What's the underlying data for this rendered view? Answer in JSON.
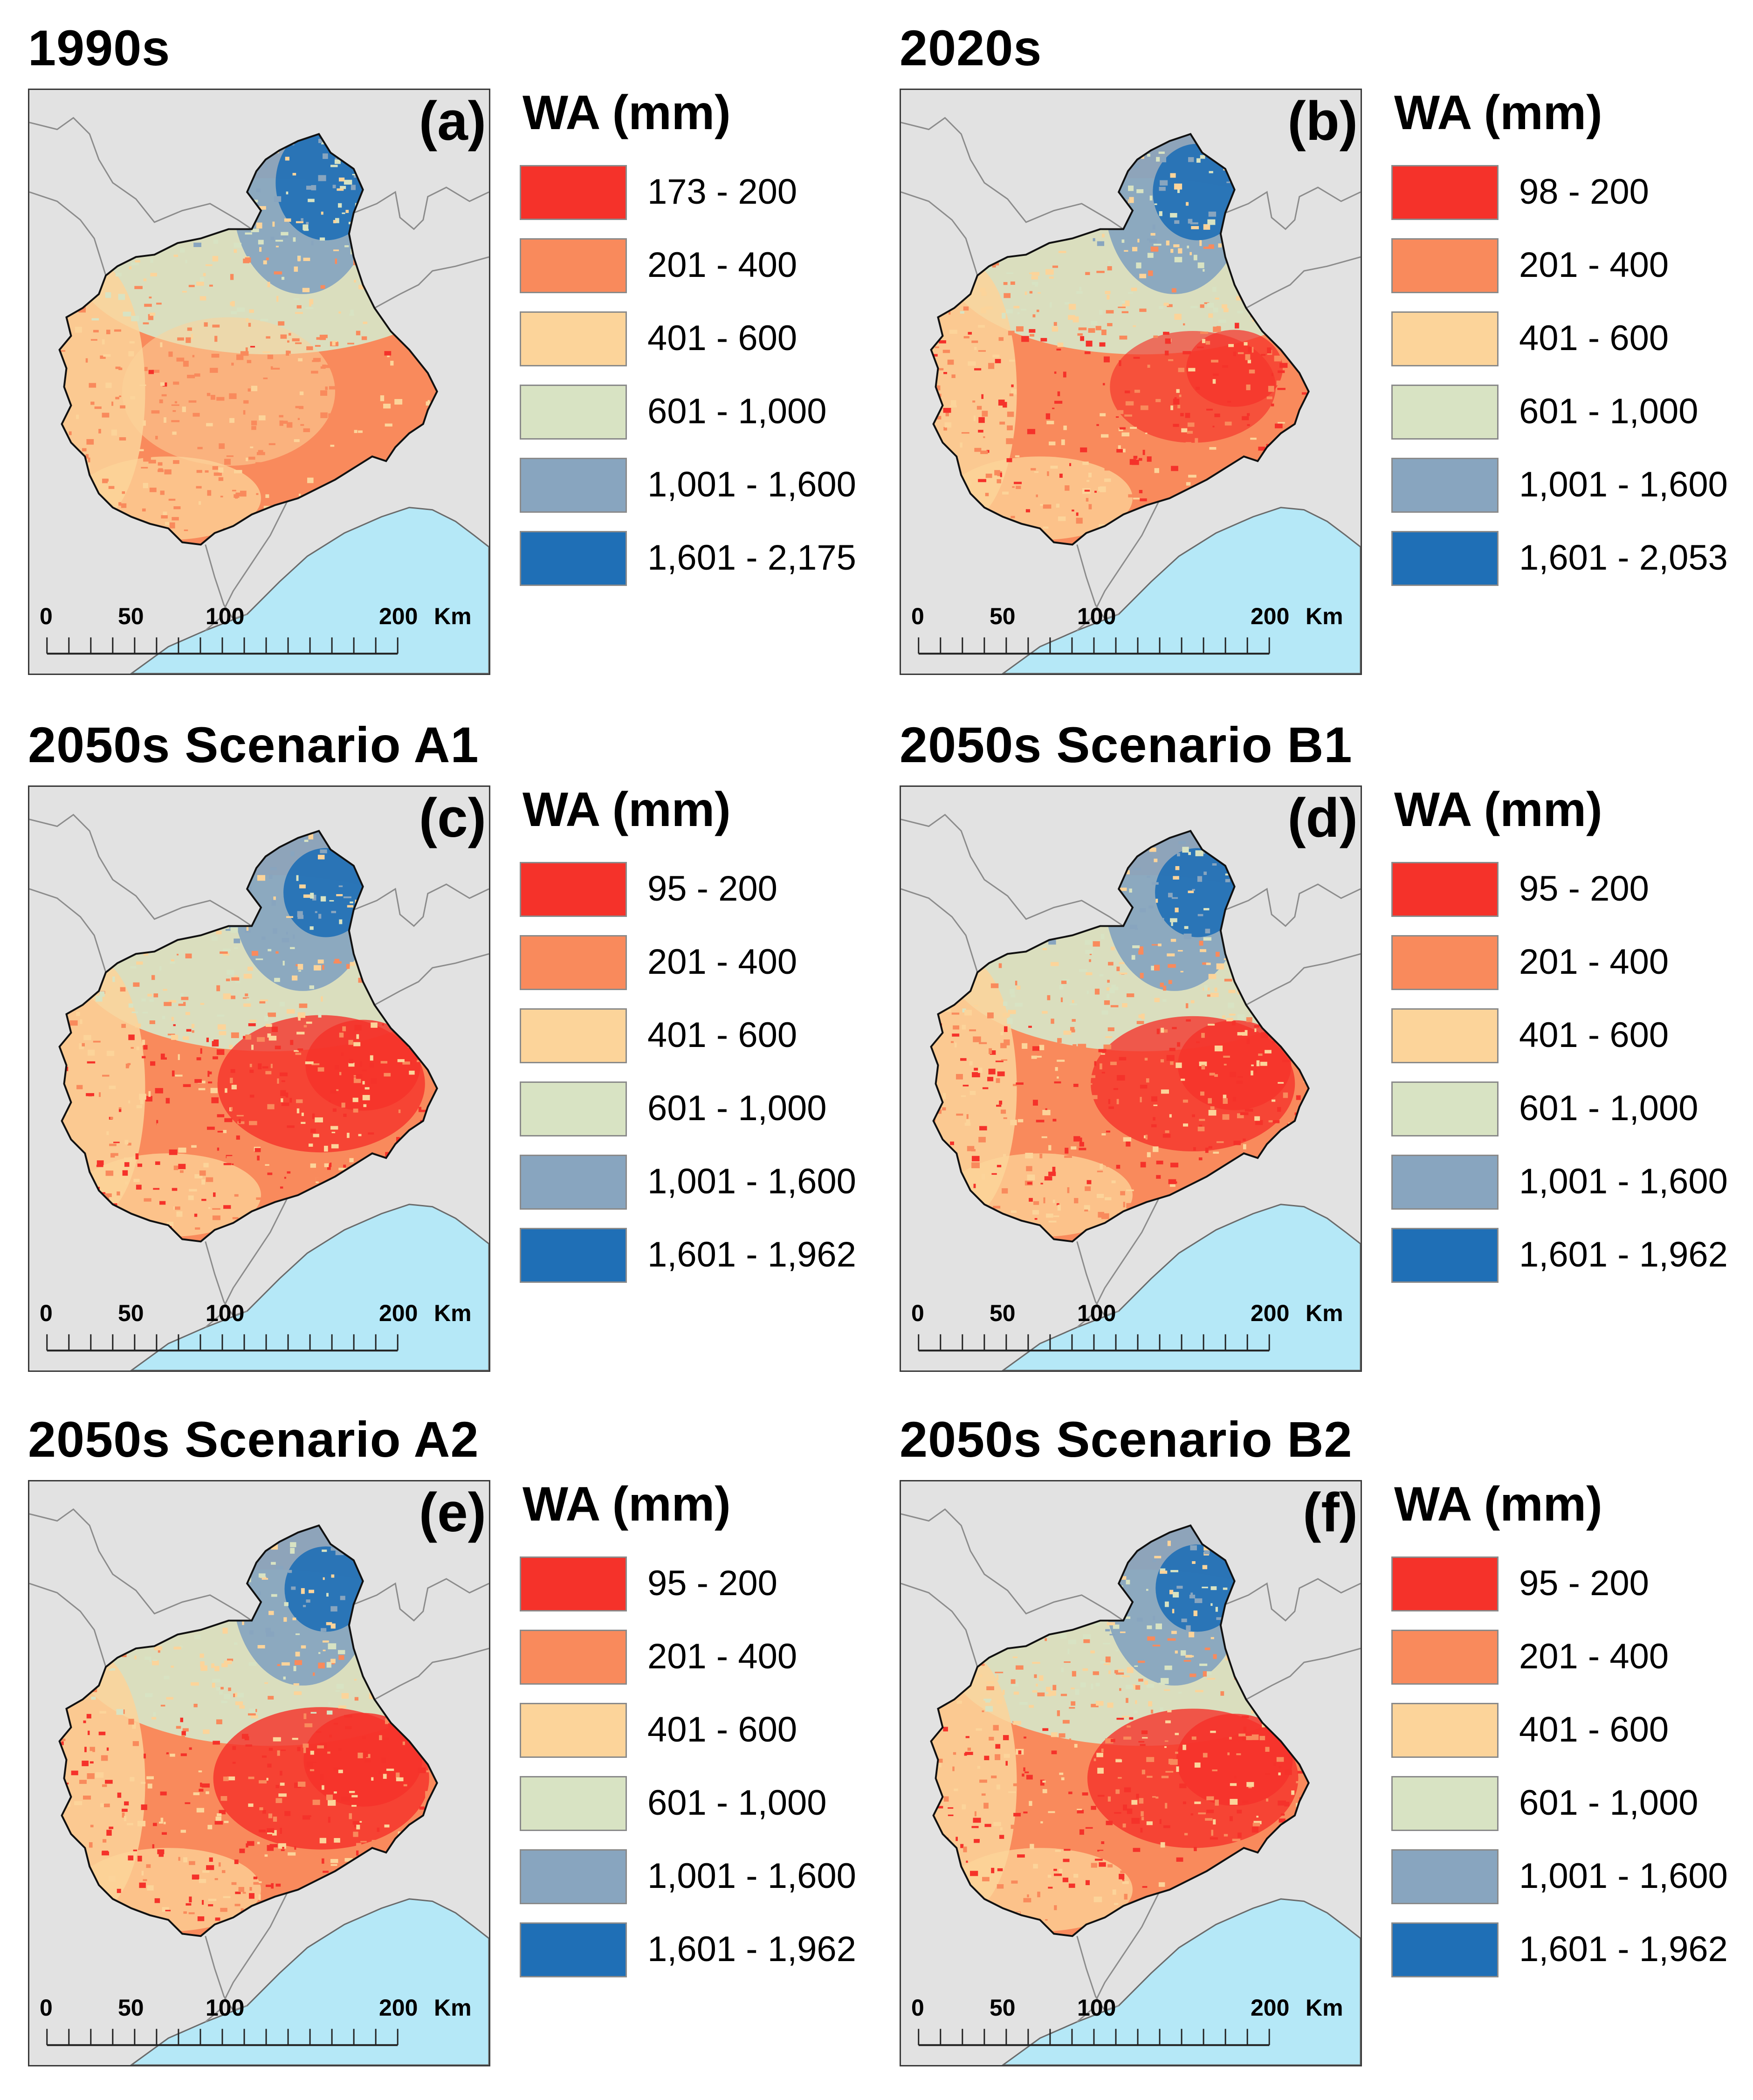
{
  "colors": {
    "class1": "#f5322a",
    "class2": "#f98a5c",
    "class3": "#fcd49a",
    "class4": "#d8e3c3",
    "class5": "#88a5bf",
    "class6": "#1f6fb6",
    "sea": "#b5e8f7",
    "background": "#e2e2e2"
  },
  "legend_title": "WA (mm)",
  "scale_bar": {
    "labels": [
      "0",
      "50",
      "100",
      "200"
    ],
    "unit": "Km"
  },
  "panels": [
    {
      "title": "1990s",
      "label": "(a)",
      "intensity": 0.05,
      "blue_extent": 0.32,
      "classes": [
        "173 - 200",
        "201 - 400",
        "401 - 600",
        "601 - 1,000",
        "1,001 - 1,600",
        "1,601 - 2,175"
      ]
    },
    {
      "title": "2020s",
      "label": "(b)",
      "intensity": 0.55,
      "blue_extent": 0.22,
      "classes": [
        "98 - 200",
        "201 - 400",
        "401 - 600",
        "601 - 1,000",
        "1,001 - 1,600",
        "1,601 - 2,053"
      ]
    },
    {
      "title": "2050s Scenario A1",
      "label": "(c)",
      "intensity": 0.8,
      "blue_extent": 0.18,
      "classes": [
        "95 - 200",
        "201 - 400",
        "401 - 600",
        "601 - 1,000",
        "1,001 - 1,600",
        "1,601 - 1,962"
      ]
    },
    {
      "title": "2050s Scenario B1",
      "label": "(d)",
      "intensity": 0.78,
      "blue_extent": 0.18,
      "classes": [
        "95 - 200",
        "201 - 400",
        "401 - 600",
        "601 - 1,000",
        "1,001 - 1,600",
        "1,601 - 1,962"
      ]
    },
    {
      "title": "2050s Scenario A2",
      "label": "(e)",
      "intensity": 0.85,
      "blue_extent": 0.16,
      "classes": [
        "95 - 200",
        "201 - 400",
        "401 - 600",
        "601 - 1,000",
        "1,001 - 1,600",
        "1,601 - 1,962"
      ]
    },
    {
      "title": "2050s Scenario B2",
      "label": "(f)",
      "intensity": 0.82,
      "blue_extent": 0.17,
      "classes": [
        "95 - 200",
        "201 - 400",
        "401 - 600",
        "601 - 1,000",
        "1,001 - 1,600",
        "1,601 - 1,962"
      ]
    }
  ]
}
